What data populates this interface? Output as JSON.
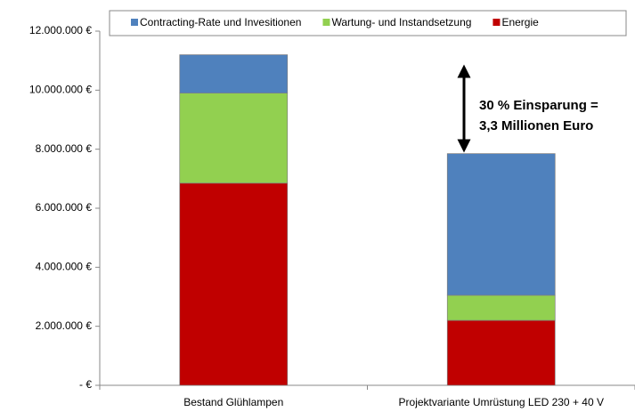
{
  "chart_data": {
    "type": "stacked_bar",
    "categories": [
      "Bestand Glühlampen",
      "Projektvariante Umrüstung LED 230 + 40 V"
    ],
    "series": [
      {
        "name": "Energie",
        "color": "#c00000",
        "values": [
          6850000,
          2200000
        ]
      },
      {
        "name": "Wartung- und Instandsetzung",
        "color": "#92d050",
        "values": [
          3050000,
          850000
        ]
      },
      {
        "name": "Contracting-Rate und Invesitionen",
        "color": "#4f81bd",
        "values": [
          1300000,
          4800000
        ]
      }
    ],
    "ylim": [
      0,
      12000000
    ],
    "yticks": [
      {
        "value": 0,
        "label": "- €"
      },
      {
        "value": 2000000,
        "label": "2.000.000 €"
      },
      {
        "value": 4000000,
        "label": "4.000.000 €"
      },
      {
        "value": 6000000,
        "label": "6.000.000 €"
      },
      {
        "value": 8000000,
        "label": "8.000.000 €"
      },
      {
        "value": 10000000,
        "label": "10.000.000 €"
      },
      {
        "value": 12000000,
        "label": "12.000.000 €"
      }
    ],
    "legend": "top",
    "annotations": [
      "30 % Einsparung =",
      "3,3 Millionen Euro"
    ]
  }
}
